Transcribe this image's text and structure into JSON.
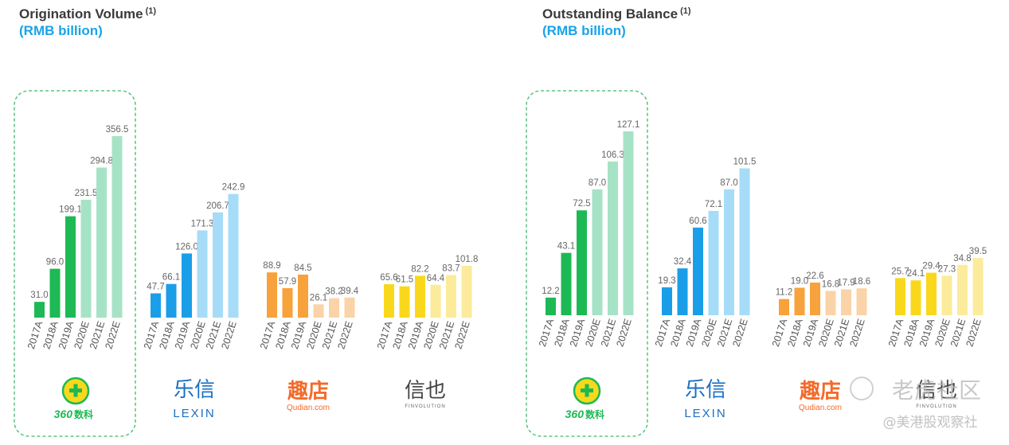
{
  "colors": {
    "qifu_a": "#1db954",
    "qifu_e": "#a6e3c6",
    "lexin_a": "#1a9ee8",
    "lexin_e": "#a6dcf7",
    "qudian_a": "#f7a23a",
    "qudian_e": "#fbd3a8",
    "finvolution_a": "#f9d81c",
    "finvolution_e": "#fbeb9b",
    "highlight_border": "#3cba6a",
    "subtitle": "#1aa3e8"
  },
  "brands": {
    "qifu": {
      "number": "360",
      "name": "数科"
    },
    "lexin": {
      "cn": "乐信",
      "en": "LEXIN"
    },
    "qudian": {
      "cn": "趣店",
      "en": "Qudian.com"
    },
    "finvolution": {
      "cn": "信也",
      "en": "FINVOLUTION"
    }
  },
  "watermark": {
    "main": "老虎社区",
    "sub": "@美港股观察社"
  },
  "chart_data": [
    {
      "type": "bar",
      "title": "Origination Volume",
      "title_footnote": "(1)",
      "subtitle": "(RMB billion)",
      "categories": [
        "2017A",
        "2018A",
        "2019A",
        "2020E",
        "2021E",
        "2022E"
      ],
      "highlight_group": "qifu",
      "groups": [
        {
          "id": "qifu",
          "values": [
            31.0,
            96.0,
            199.1,
            231.5,
            294.8,
            356.5
          ],
          "labels": [
            "31.0",
            "96.0",
            "199.1",
            "231.5",
            "294.8",
            "356.5"
          ]
        },
        {
          "id": "lexin",
          "values": [
            47.7,
            66.1,
            126.0,
            171.3,
            206.7,
            242.9
          ],
          "labels": [
            "47.7",
            "66.1",
            "126.0",
            "171.3",
            "206.7",
            "242.9"
          ]
        },
        {
          "id": "qudian",
          "values": [
            88.9,
            57.9,
            84.5,
            26.1,
            38.2,
            39.4
          ],
          "labels": [
            "88.9",
            "57.9",
            "84.5",
            "26.1",
            "38.2",
            "39.4"
          ]
        },
        {
          "id": "finvolution",
          "values": [
            65.6,
            61.5,
            82.2,
            64.4,
            83.7,
            101.8
          ],
          "labels": [
            "65.6",
            "61.5",
            "82.2",
            "64.4",
            "83.7",
            "101.8"
          ]
        }
      ]
    },
    {
      "type": "bar",
      "title": "Outstanding Balance",
      "title_footnote": "(1)",
      "subtitle": "(RMB billion)",
      "categories": [
        "2017A",
        "2018A",
        "2019A",
        "2020E",
        "2021E",
        "2022E"
      ],
      "highlight_group": "qifu",
      "groups": [
        {
          "id": "qifu",
          "values": [
            12.2,
            43.1,
            72.5,
            87.0,
            106.3,
            127.1
          ],
          "labels": [
            "12.2",
            "43.1",
            "72.5",
            "87.0",
            "106.3",
            "127.1"
          ]
        },
        {
          "id": "lexin",
          "values": [
            19.3,
            32.4,
            60.6,
            72.1,
            87.0,
            101.5
          ],
          "labels": [
            "19.3",
            "32.4",
            "60.6",
            "72.1",
            "87.0",
            "101.5"
          ]
        },
        {
          "id": "qudian",
          "values": [
            11.2,
            19.0,
            22.6,
            16.8,
            17.9,
            18.6
          ],
          "labels": [
            "11.2",
            "19.0",
            "22.6",
            "16.8",
            "17.9",
            "18.6"
          ]
        },
        {
          "id": "finvolution",
          "values": [
            25.7,
            24.1,
            29.4,
            27.3,
            34.8,
            39.5
          ],
          "labels": [
            "25.7",
            "24.1",
            "29.4",
            "27.3",
            "34.8",
            "39.5"
          ]
        }
      ]
    }
  ]
}
